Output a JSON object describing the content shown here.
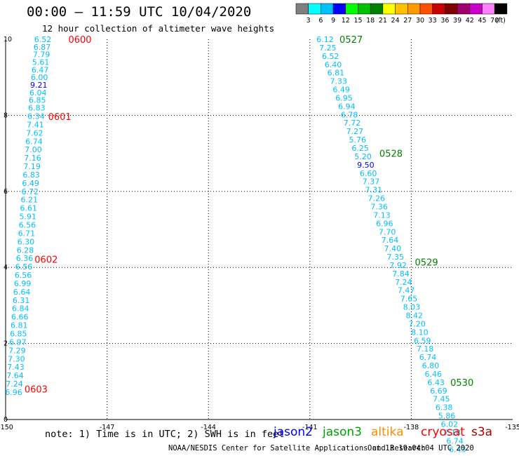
{
  "header": {
    "title": "00:00 – 11:59 UTC 10/04/2020",
    "subtitle": "12 hour collection of altimeter wave heights"
  },
  "legend": {
    "colors": [
      "#7f7f7f",
      "#00ffff",
      "#00bfff",
      "#0000ff",
      "#00ff00",
      "#00c000",
      "#008000",
      "#ffff00",
      "#ffc000",
      "#ff9900",
      "#ff5000",
      "#c80000",
      "#800000",
      "#a0006e",
      "#c800c8",
      "#ff80ff",
      "#000000"
    ],
    "labels": [
      "3",
      "6",
      "9",
      "12",
      "15",
      "18",
      "21",
      "24",
      "27",
      "30",
      "33",
      "36",
      "39",
      "42",
      "45",
      "70"
    ],
    "unit": "(ft)"
  },
  "footer": {
    "note": "note:  1) Time is in UTC; 2) SWH is in feet",
    "satellites": [
      {
        "name": "jason2",
        "color": "#0000ff"
      },
      {
        "name": "jason3",
        "color": "#00a000"
      },
      {
        "name": "altika",
        "color": "#ff8c00"
      },
      {
        "name": "cryosat",
        "color": "#ff0000"
      },
      {
        "name": "s3a",
        "color": "#b00000"
      }
    ],
    "credit": "NOAA/NESDIS Center for Satellite Applications and Research",
    "timestamp": "Oct 13 19:04:04 UTC 2020"
  },
  "chart_data": {
    "type": "scatter",
    "title": "00:00 – 11:59 UTC 10/04/2020",
    "subtitle": "12 hour collection of altimeter wave heights",
    "xlim": [
      -150,
      -135
    ],
    "ylim": [
      0,
      10
    ],
    "x_ticks": [
      "-150",
      "-147",
      "-144",
      "-141",
      "-138",
      "-135"
    ],
    "y_ticks": [
      "0",
      "2",
      "4",
      "6",
      "8",
      "10"
    ],
    "grid": true,
    "value_color": "#00bfff",
    "high_color": "#0000ff",
    "time_labels": [
      {
        "text": "0600",
        "x": -147.8,
        "y": 10.0,
        "color": "#ff0000"
      },
      {
        "text": "0601",
        "x": -148.4,
        "y": 7.97,
        "color": "#ff0000"
      },
      {
        "text": "0602",
        "x": -148.8,
        "y": 4.22,
        "color": "#ff0000"
      },
      {
        "text": "0603",
        "x": -149.1,
        "y": 0.8,
        "color": "#ff0000"
      },
      {
        "text": "0527",
        "x": -139.78,
        "y": 10.0,
        "color": "#008000"
      },
      {
        "text": "0528",
        "x": -138.6,
        "y": 7.0,
        "color": "#008000"
      },
      {
        "text": "0529",
        "x": -137.55,
        "y": 4.14,
        "color": "#008000"
      },
      {
        "text": "0530",
        "x": -136.5,
        "y": 0.98,
        "color": "#008000"
      }
    ],
    "series": [
      {
        "values": [
          "6.52",
          "6.87",
          "7.79",
          "5.61",
          "6.47",
          "6.00",
          "9.21",
          "6.04",
          "6.85",
          "6.83",
          "6.34",
          "7.41",
          "7.62",
          "6.74",
          "7.00",
          "7.16",
          "7.19",
          "6.83",
          "6.49",
          "6.72",
          "6.21",
          "6.61",
          "5.91",
          "6.56",
          "6.71",
          "6.30",
          "6.28",
          "6.36",
          "6.56",
          "6.56",
          "6.99",
          "6.64",
          "6.31",
          "6.84",
          "6.66",
          "6.81",
          "6.85",
          "6.97",
          "7.29",
          "7.30",
          "7.43",
          "7.64",
          "7.24",
          "6.96"
        ],
        "x": [
          -148.9,
          -148.92,
          -148.94,
          -148.96,
          -148.98,
          -149.0,
          -149.02,
          -149.04,
          -149.06,
          -149.08,
          -149.1,
          -149.12,
          -149.14,
          -149.16,
          -149.18,
          -149.2,
          -149.22,
          -149.24,
          -149.26,
          -149.28,
          -149.3,
          -149.32,
          -149.34,
          -149.36,
          -149.38,
          -149.4,
          -149.42,
          -149.44,
          -149.46,
          -149.48,
          -149.5,
          -149.52,
          -149.54,
          -149.56,
          -149.58,
          -149.6,
          -149.62,
          -149.64,
          -149.66,
          -149.68,
          -149.7,
          -149.72,
          -149.74,
          -149.76
        ],
        "y": [
          10.0,
          9.8,
          9.6,
          9.4,
          9.2,
          9.0,
          8.8,
          8.6,
          8.4,
          8.2,
          7.98,
          7.76,
          7.54,
          7.32,
          7.1,
          6.88,
          6.66,
          6.44,
          6.22,
          6.0,
          5.78,
          5.56,
          5.34,
          5.12,
          4.9,
          4.68,
          4.46,
          4.24,
          4.02,
          3.8,
          3.58,
          3.36,
          3.14,
          2.92,
          2.7,
          2.48,
          2.26,
          2.04,
          1.82,
          1.6,
          1.38,
          1.16,
          0.94,
          0.72
        ]
      },
      {
        "values": [
          "6.12",
          "7.25",
          "6.52",
          "6.40",
          "6.81",
          "7.33",
          "6.49",
          "6.95",
          "6.94",
          "6.78",
          "7.72",
          "7.27",
          "5.76",
          "6.25",
          "5.20",
          "9.50",
          "6.60",
          "7.37",
          "7.31",
          "7.26",
          "7.36",
          "7.13",
          "6.96",
          "7.70",
          "7.64",
          "7.40",
          "7.35",
          "7.92",
          "7.84",
          "7.24",
          "7.47",
          "7.65",
          "8.03",
          "8.42",
          "7.20",
          "8.10",
          "6.59",
          "7.18",
          "6.74",
          "6.80",
          "6.46",
          "6.43",
          "6.69",
          "7.45",
          "6.38",
          "5.86",
          "6.02",
          "7.18",
          "6.74",
          "6.43"
        ],
        "x": [
          -140.55,
          -140.47,
          -140.39,
          -140.31,
          -140.23,
          -140.15,
          -140.07,
          -139.99,
          -139.91,
          -139.83,
          -139.75,
          -139.67,
          -139.59,
          -139.51,
          -139.43,
          -139.35,
          -139.27,
          -139.19,
          -139.11,
          -139.03,
          -138.95,
          -138.87,
          -138.79,
          -138.71,
          -138.63,
          -138.55,
          -138.47,
          -138.39,
          -138.31,
          -138.23,
          -138.15,
          -138.07,
          -137.99,
          -137.91,
          -137.83,
          -137.75,
          -137.67,
          -137.59,
          -137.51,
          -137.43,
          -137.35,
          -137.27,
          -137.19,
          -137.11,
          -137.03,
          -136.95,
          -136.87,
          -136.79,
          -136.71,
          -136.63
        ],
        "y": [
          10.0,
          9.78,
          9.56,
          9.34,
          9.12,
          8.9,
          8.68,
          8.46,
          8.24,
          8.02,
          7.8,
          7.58,
          7.36,
          7.14,
          6.92,
          6.7,
          6.48,
          6.26,
          6.04,
          5.82,
          5.6,
          5.38,
          5.16,
          4.94,
          4.72,
          4.5,
          4.28,
          4.06,
          3.84,
          3.62,
          3.4,
          3.18,
          2.96,
          2.74,
          2.52,
          2.3,
          2.08,
          1.86,
          1.64,
          1.42,
          1.2,
          0.98,
          0.76,
          0.54,
          0.32,
          0.1,
          -0.12,
          -0.34,
          -0.56,
          -0.78
        ]
      }
    ]
  }
}
